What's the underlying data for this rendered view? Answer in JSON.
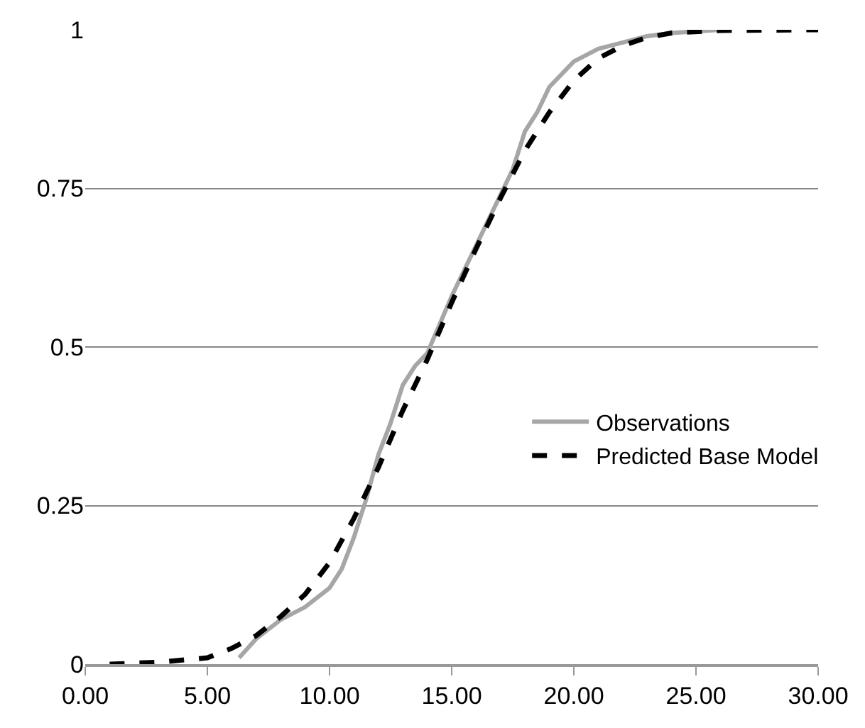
{
  "chart_data": {
    "type": "line",
    "xlim": [
      0,
      30
    ],
    "ylim": [
      0,
      1
    ],
    "xticks": [
      {
        "value": 0,
        "label": "0.00"
      },
      {
        "value": 5,
        "label": "5.00"
      },
      {
        "value": 10,
        "label": "10.00"
      },
      {
        "value": 15,
        "label": "15.00"
      },
      {
        "value": 20,
        "label": "20.00"
      },
      {
        "value": 25,
        "label": "25.00"
      },
      {
        "value": 30,
        "label": "30.00"
      }
    ],
    "yticks": [
      0,
      0.25,
      0.5,
      0.75,
      1
    ],
    "grid": "y",
    "legend": "right",
    "marker": "none",
    "series": [
      {
        "name": "Observations",
        "color": "#a6a6a6",
        "line_style": "solid",
        "x": [
          6.3,
          7,
          8,
          9,
          10,
          10.5,
          11,
          11.5,
          12,
          12.5,
          13,
          13.5,
          14,
          15,
          16,
          17,
          17.5,
          18,
          18.5,
          19,
          19.5,
          20,
          21,
          22,
          23,
          24,
          26
        ],
        "values": [
          0.01,
          0.04,
          0.07,
          0.09,
          0.12,
          0.15,
          0.2,
          0.26,
          0.33,
          0.38,
          0.44,
          0.47,
          0.49,
          0.58,
          0.66,
          0.74,
          0.78,
          0.84,
          0.87,
          0.91,
          0.93,
          0.95,
          0.97,
          0.98,
          0.99,
          0.995,
          1
        ]
      },
      {
        "name": "Predicted Base Model",
        "color": "#000000",
        "line_style": "dashed",
        "x": [
          1,
          3,
          5,
          6,
          7,
          8,
          9,
          10,
          11,
          12,
          13,
          14,
          15,
          16,
          17,
          18,
          19,
          20,
          21,
          22,
          23,
          24,
          26,
          30
        ],
        "values": [
          0,
          0.003,
          0.01,
          0.025,
          0.045,
          0.075,
          0.11,
          0.16,
          0.23,
          0.31,
          0.4,
          0.48,
          0.57,
          0.655,
          0.735,
          0.81,
          0.87,
          0.92,
          0.955,
          0.975,
          0.988,
          0.995,
          0.999,
          1
        ]
      }
    ]
  }
}
